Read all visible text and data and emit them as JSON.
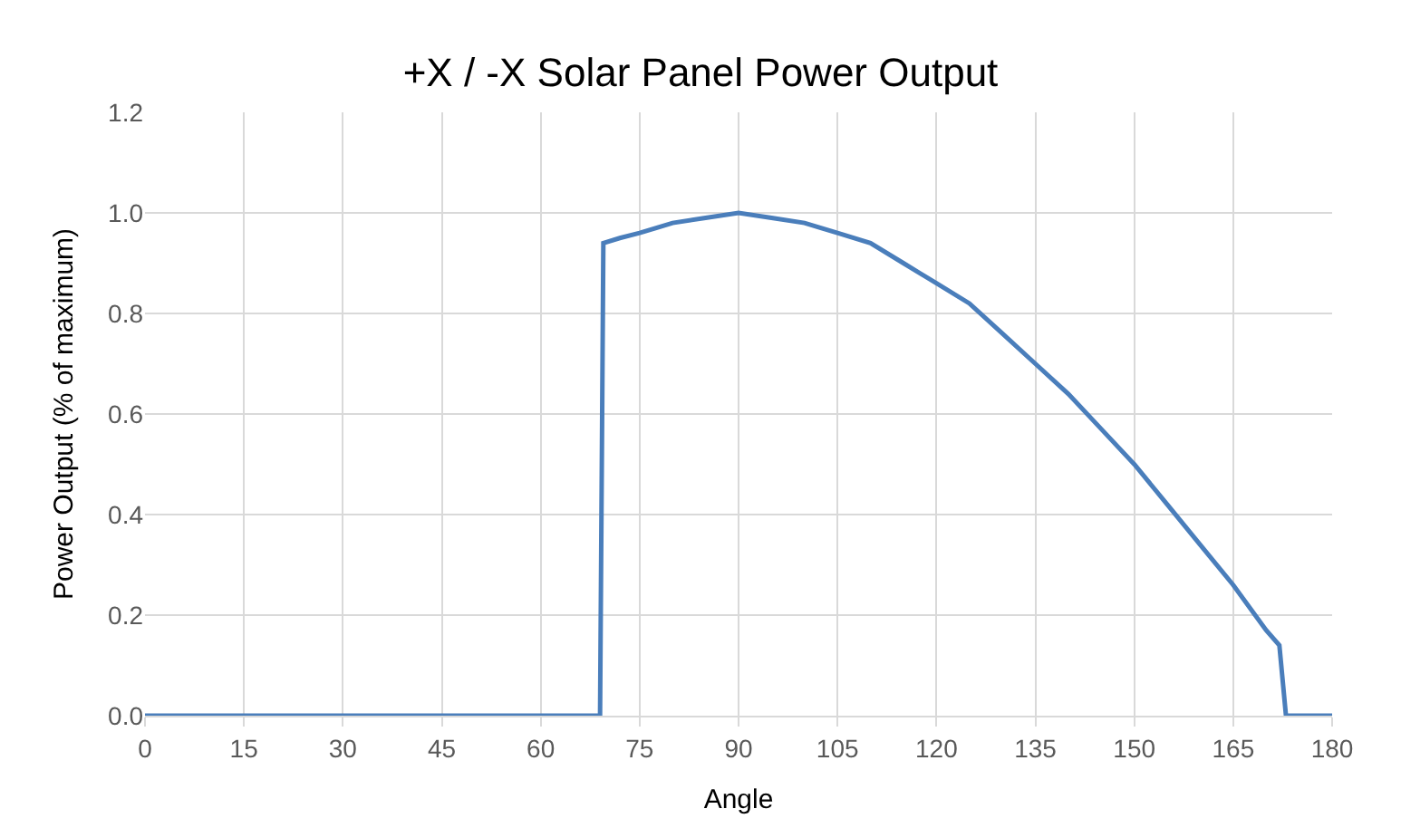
{
  "chart_data": {
    "type": "line",
    "title": "+X / -X Solar Panel Power Output",
    "xlabel": "Angle",
    "ylabel": "Power Output (% of maximum)",
    "x": [
      0,
      69,
      69.5,
      72,
      75,
      80,
      85,
      90,
      95,
      100,
      105,
      110,
      115,
      120,
      125,
      130,
      135,
      140,
      145,
      150,
      155,
      160,
      165,
      170,
      172,
      173,
      180
    ],
    "series": [
      {
        "color": "#4a7ebb",
        "values": [
          0,
          0,
          0.94,
          0.95,
          0.96,
          0.98,
          0.99,
          1.0,
          0.99,
          0.98,
          0.96,
          0.94,
          0.9,
          0.86,
          0.82,
          0.76,
          0.7,
          0.64,
          0.57,
          0.5,
          0.42,
          0.34,
          0.26,
          0.17,
          0.14,
          0,
          0
        ]
      }
    ],
    "xlim": [
      0,
      180
    ],
    "xticks": [
      0,
      15,
      30,
      45,
      60,
      75,
      90,
      105,
      120,
      135,
      150,
      165,
      180
    ],
    "ylim": [
      0,
      1.2
    ],
    "yticks": [
      {
        "value": 0,
        "label": "0.0"
      },
      {
        "value": 0.2,
        "label": "0.2"
      },
      {
        "value": 0.4,
        "label": "0.4"
      },
      {
        "value": 0.6,
        "label": "0.6"
      },
      {
        "value": 0.8,
        "label": "0.8"
      },
      {
        "value": 1.0,
        "label": "1.0"
      },
      {
        "value": 1.2,
        "label": "1.2"
      }
    ],
    "grid": true,
    "legend": false,
    "marker": "none",
    "line_style": "solid"
  }
}
